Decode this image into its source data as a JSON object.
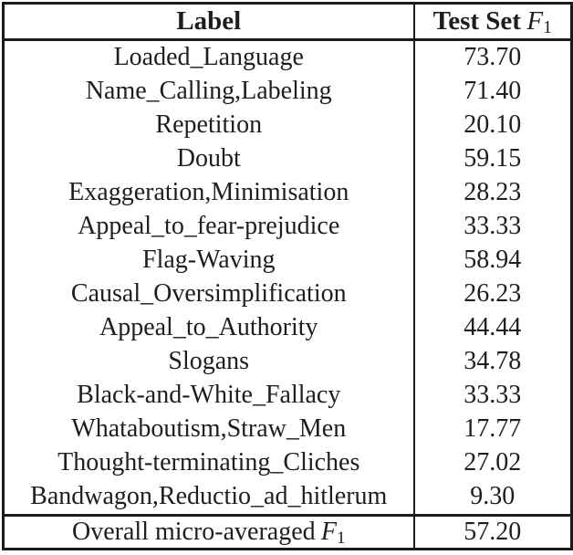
{
  "colors": {
    "background": "#ffffff",
    "text": "#1e1e1e",
    "border": "#1b1b1b"
  },
  "table": {
    "header": {
      "label_col": "Label",
      "score_col_prefix": "Test Set",
      "f_symbol": "F",
      "f_subscript": "1"
    },
    "rows": [
      {
        "label": "Loaded_Language",
        "value": "73.70"
      },
      {
        "label": "Name_Calling,Labeling",
        "value": "71.40"
      },
      {
        "label": "Repetition",
        "value": "20.10"
      },
      {
        "label": "Doubt",
        "value": "59.15"
      },
      {
        "label": "Exaggeration,Minimisation",
        "value": "28.23"
      },
      {
        "label": "Appeal_to_fear-prejudice",
        "value": "33.33"
      },
      {
        "label": "Flag-Waving",
        "value": "58.94"
      },
      {
        "label": "Causal_Oversimplification",
        "value": "26.23"
      },
      {
        "label": "Appeal_to_Authority",
        "value": "44.44"
      },
      {
        "label": "Slogans",
        "value": "34.78"
      },
      {
        "label": "Black-and-White_Fallacy",
        "value": "33.33"
      },
      {
        "label": "Whataboutism,Straw_Men",
        "value": "17.77"
      },
      {
        "label": "Thought-terminating_Cliches",
        "value": "27.02"
      },
      {
        "label": "Bandwagon,Reductio_ad_hitlerum",
        "value": "9.30"
      }
    ],
    "footer": {
      "label_prefix": "Overall micro-averaged",
      "f_symbol": "F",
      "f_subscript": "1",
      "value": "57.20"
    }
  }
}
